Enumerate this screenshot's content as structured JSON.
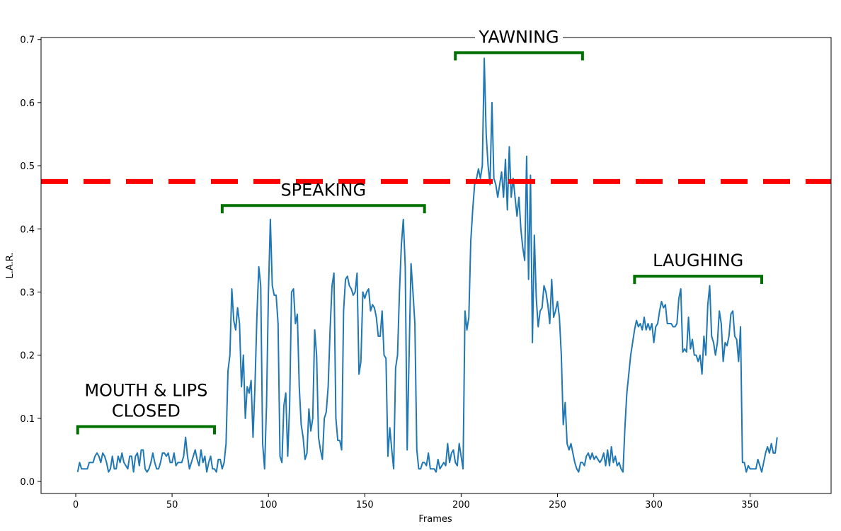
{
  "chart_data": {
    "type": "line",
    "title": "",
    "xlabel": "Frames",
    "ylabel": "L.A.R.",
    "xlim": [
      -18,
      392
    ],
    "ylim": [
      -0.019,
      0.703
    ],
    "x_ticks": [
      0,
      50,
      100,
      150,
      200,
      250,
      300,
      350
    ],
    "y_ticks": [
      0.0,
      0.1,
      0.2,
      0.3,
      0.4,
      0.5,
      0.6,
      0.7
    ],
    "x_tick_labels": [
      "0",
      "50",
      "100",
      "150",
      "200",
      "250",
      "300",
      "350"
    ],
    "y_tick_labels": [
      "0.0",
      "0.1",
      "0.2",
      "0.3",
      "0.4",
      "0.5",
      "0.6",
      "0.7"
    ],
    "grid": false,
    "series": [
      {
        "color": "#1f77b4",
        "x_start": 1,
        "x_step": 1,
        "values": [
          0.015,
          0.03,
          0.02,
          0.02,
          0.02,
          0.02,
          0.03,
          0.03,
          0.03,
          0.04,
          0.045,
          0.04,
          0.03,
          0.045,
          0.04,
          0.03,
          0.015,
          0.02,
          0.04,
          0.02,
          0.02,
          0.04,
          0.03,
          0.045,
          0.03,
          0.025,
          0.02,
          0.04,
          0.04,
          0.015,
          0.04,
          0.045,
          0.025,
          0.05,
          0.05,
          0.02,
          0.015,
          0.02,
          0.03,
          0.045,
          0.03,
          0.02,
          0.02,
          0.03,
          0.045,
          0.045,
          0.04,
          0.045,
          0.03,
          0.03,
          0.045,
          0.025,
          0.03,
          0.03,
          0.03,
          0.04,
          0.07,
          0.04,
          0.02,
          0.03,
          0.04,
          0.05,
          0.035,
          0.025,
          0.05,
          0.03,
          0.04,
          0.015,
          0.03,
          0.04,
          0.02,
          0.02,
          0.015,
          0.035,
          0.035,
          0.02,
          0.03,
          0.06,
          0.175,
          0.2,
          0.305,
          0.255,
          0.24,
          0.275,
          0.25,
          0.15,
          0.2,
          0.1,
          0.15,
          0.14,
          0.16,
          0.07,
          0.15,
          0.26,
          0.34,
          0.31,
          0.06,
          0.02,
          0.12,
          0.3,
          0.415,
          0.31,
          0.295,
          0.295,
          0.25,
          0.04,
          0.03,
          0.12,
          0.14,
          0.04,
          0.12,
          0.3,
          0.305,
          0.25,
          0.265,
          0.15,
          0.09,
          0.07,
          0.035,
          0.045,
          0.115,
          0.08,
          0.1,
          0.24,
          0.2,
          0.07,
          0.05,
          0.035,
          0.1,
          0.11,
          0.15,
          0.24,
          0.31,
          0.33,
          0.1,
          0.065,
          0.065,
          0.05,
          0.27,
          0.32,
          0.325,
          0.31,
          0.305,
          0.295,
          0.3,
          0.33,
          0.17,
          0.19,
          0.3,
          0.29,
          0.3,
          0.305,
          0.27,
          0.28,
          0.275,
          0.26,
          0.23,
          0.23,
          0.27,
          0.2,
          0.195,
          0.04,
          0.085,
          0.05,
          0.02,
          0.18,
          0.2,
          0.3,
          0.375,
          0.415,
          0.34,
          0.05,
          0.2,
          0.345,
          0.3,
          0.25,
          0.05,
          0.02,
          0.02,
          0.03,
          0.03,
          0.025,
          0.045,
          0.02,
          0.02,
          0.02,
          0.015,
          0.035,
          0.02,
          0.025,
          0.03,
          0.025,
          0.06,
          0.03,
          0.045,
          0.05,
          0.03,
          0.025,
          0.06,
          0.04,
          0.02,
          0.27,
          0.24,
          0.26,
          0.38,
          0.43,
          0.47,
          0.48,
          0.495,
          0.48,
          0.5,
          0.67,
          0.55,
          0.5,
          0.47,
          0.6,
          0.48,
          0.47,
          0.45,
          0.47,
          0.49,
          0.45,
          0.51,
          0.43,
          0.53,
          0.45,
          0.48,
          0.45,
          0.42,
          0.45,
          0.4,
          0.37,
          0.35,
          0.515,
          0.32,
          0.485,
          0.22,
          0.39,
          0.29,
          0.245,
          0.27,
          0.275,
          0.31,
          0.3,
          0.28,
          0.25,
          0.32,
          0.26,
          0.27,
          0.285,
          0.26,
          0.2,
          0.09,
          0.125,
          0.06,
          0.05,
          0.06,
          0.045,
          0.03,
          0.02,
          0.015,
          0.03,
          0.03,
          0.025,
          0.04,
          0.045,
          0.035,
          0.045,
          0.035,
          0.04,
          0.035,
          0.03,
          0.035,
          0.045,
          0.025,
          0.05,
          0.025,
          0.055,
          0.03,
          0.04,
          0.025,
          0.03,
          0.02,
          0.015,
          0.085,
          0.14,
          0.17,
          0.2,
          0.22,
          0.24,
          0.255,
          0.245,
          0.25,
          0.24,
          0.26,
          0.24,
          0.25,
          0.24,
          0.25,
          0.22,
          0.245,
          0.25,
          0.27,
          0.285,
          0.275,
          0.28,
          0.25,
          0.25,
          0.25,
          0.245,
          0.245,
          0.25,
          0.29,
          0.305,
          0.205,
          0.21,
          0.205,
          0.26,
          0.21,
          0.225,
          0.2,
          0.2,
          0.19,
          0.2,
          0.17,
          0.23,
          0.2,
          0.28,
          0.31,
          0.23,
          0.22,
          0.2,
          0.22,
          0.27,
          0.25,
          0.19,
          0.22,
          0.215,
          0.23,
          0.265,
          0.27,
          0.23,
          0.225,
          0.19,
          0.245,
          0.03,
          0.03,
          0.015,
          0.025,
          0.02,
          0.02,
          0.02,
          0.02,
          0.035,
          0.025,
          0.015,
          0.03,
          0.045,
          0.055,
          0.045,
          0.06,
          0.045,
          0.045,
          0.07
        ]
      }
    ],
    "threshold": {
      "y": 0.475,
      "color": "#ff0000",
      "style": "dashed"
    },
    "annotations": [
      {
        "lines": [
          "MOUTH & LIPS",
          "CLOSED"
        ],
        "x_start": 1,
        "x_end": 72,
        "y": 0.087,
        "bracket_color": "#007000"
      },
      {
        "lines": [
          "SPEAKING"
        ],
        "x_start": 76,
        "x_end": 181,
        "y": 0.437,
        "bracket_color": "#007000"
      },
      {
        "lines": [
          "YAWNING"
        ],
        "x_start": 197,
        "x_end": 263,
        "y": 0.679,
        "bracket_color": "#007000"
      },
      {
        "lines": [
          "LAUGHING"
        ],
        "x_start": 290,
        "x_end": 356,
        "y": 0.325,
        "bracket_color": "#007000"
      }
    ]
  }
}
